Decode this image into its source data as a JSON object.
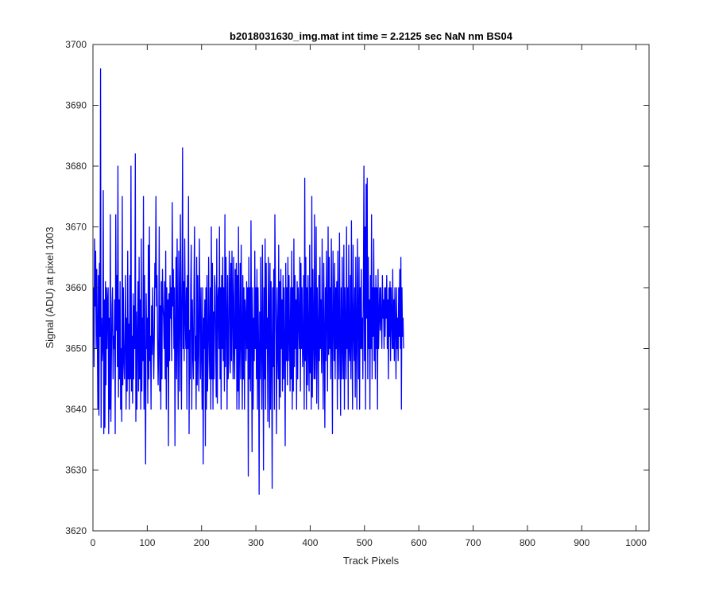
{
  "chart_data": {
    "type": "line",
    "title": "b2018031630_img.mat int time = 2.2125 sec  NaN nm BS04",
    "xlabel": "Track Pixels",
    "ylabel": "Signal (ADU) at pixel 1003",
    "xlim": [
      0,
      1024
    ],
    "ylim": [
      3620,
      3700
    ],
    "xticks": [
      0,
      100,
      200,
      300,
      400,
      500,
      600,
      700,
      800,
      900,
      1000
    ],
    "yticks": [
      3620,
      3630,
      3640,
      3650,
      3660,
      3670,
      3680,
      3690,
      3700
    ],
    "grid": false,
    "legend": "none",
    "series": [
      {
        "color": "#0000ff",
        "x_start": 1,
        "x_step": 1,
        "values": [
          3660,
          3647,
          3668,
          3657,
          3666,
          3650,
          3663,
          3653,
          3640,
          3662,
          3639,
          3664,
          3652,
          3696,
          3637,
          3655,
          3648,
          3650,
          3676,
          3636,
          3658,
          3637,
          3661,
          3644,
          3660,
          3650,
          3658,
          3660,
          3636,
          3655,
          3640,
          3672,
          3638,
          3648,
          3657,
          3660,
          3645,
          3652,
          3650,
          3658,
          3636,
          3672,
          3653,
          3662,
          3647,
          3680,
          3642,
          3658,
          3645,
          3661,
          3640,
          3650,
          3638,
          3675,
          3644,
          3660,
          3648,
          3645,
          3652,
          3662,
          3640,
          3655,
          3643,
          3666,
          3645,
          3654,
          3640,
          3662,
          3645,
          3680,
          3643,
          3652,
          3641,
          3659,
          3645,
          3657,
          3650,
          3682,
          3638,
          3656,
          3640,
          3652,
          3661,
          3643,
          3665,
          3645,
          3658,
          3640,
          3668,
          3643,
          3655,
          3648,
          3675,
          3640,
          3662,
          3645,
          3631,
          3659,
          3650,
          3655,
          3641,
          3667,
          3645,
          3670,
          3648,
          3652,
          3640,
          3657,
          3649,
          3660,
          3652,
          3645,
          3652,
          3664,
          3660,
          3675,
          3657,
          3662,
          3652,
          3644,
          3650,
          3670,
          3643,
          3657,
          3640,
          3661,
          3645,
          3663,
          3657,
          3655,
          3650,
          3661,
          3645,
          3666,
          3640,
          3660,
          3647,
          3658,
          3634,
          3659,
          3648,
          3662,
          3655,
          3660,
          3648,
          3674,
          3657,
          3663,
          3650,
          3660,
          3634,
          3653,
          3665,
          3645,
          3668,
          3652,
          3640,
          3666,
          3657,
          3643,
          3672,
          3658,
          3640,
          3660,
          3683,
          3650,
          3661,
          3648,
          3668,
          3655,
          3650,
          3660,
          3640,
          3662,
          3650,
          3675,
          3636,
          3653,
          3645,
          3660,
          3667,
          3640,
          3658,
          3650,
          3645,
          3660,
          3670,
          3648,
          3652,
          3640,
          3665,
          3644,
          3662,
          3650,
          3643,
          3668,
          3657,
          3645,
          3660,
          3649,
          3640,
          3660,
          3631,
          3655,
          3650,
          3658,
          3634,
          3660,
          3640,
          3662,
          3643,
          3648,
          3665,
          3652,
          3645,
          3660,
          3640,
          3670,
          3645,
          3664,
          3640,
          3656,
          3645,
          3662,
          3660,
          3650,
          3642,
          3668,
          3641,
          3658,
          3660,
          3650,
          3670,
          3645,
          3660,
          3640,
          3662,
          3650,
          3665,
          3648,
          3660,
          3643,
          3672,
          3647,
          3665,
          3655,
          3640,
          3662,
          3645,
          3648,
          3666,
          3660,
          3646,
          3664,
          3648,
          3666,
          3656,
          3645,
          3665,
          3650,
          3645,
          3663,
          3650,
          3664,
          3640,
          3662,
          3643,
          3670,
          3640,
          3652,
          3664,
          3645,
          3667,
          3652,
          3640,
          3662,
          3645,
          3660,
          3640,
          3658,
          3655,
          3648,
          3661,
          3650,
          3660,
          3629,
          3665,
          3645,
          3660,
          3643,
          3671,
          3652,
          3633,
          3660,
          3640,
          3655,
          3648,
          3666,
          3650,
          3660,
          3645,
          3663,
          3640,
          3660,
          3650,
          3626,
          3656,
          3645,
          3665,
          3650,
          3640,
          3667,
          3653,
          3630,
          3660,
          3645,
          3668,
          3640,
          3664,
          3650,
          3655,
          3638,
          3665,
          3656,
          3637,
          3664,
          3640,
          3661,
          3650,
          3627,
          3660,
          3647,
          3663,
          3640,
          3672,
          3660,
          3652,
          3636,
          3660,
          3650,
          3645,
          3667,
          3640,
          3661,
          3642,
          3663,
          3650,
          3658,
          3643,
          3662,
          3645,
          3660,
          3650,
          3634,
          3664,
          3648,
          3660,
          3644,
          3665,
          3648,
          3662,
          3652,
          3643,
          3660,
          3645,
          3666,
          3640,
          3660,
          3643,
          3668,
          3647,
          3662,
          3650,
          3658,
          3640,
          3661,
          3645,
          3660,
          3655,
          3650,
          3665,
          3643,
          3664,
          3650,
          3660,
          3647,
          3650,
          3662,
          3640,
          3678,
          3648,
          3665,
          3640,
          3660,
          3644,
          3662,
          3651,
          3643,
          3667,
          3646,
          3660,
          3640,
          3675,
          3642,
          3663,
          3652,
          3645,
          3672,
          3645,
          3650,
          3670,
          3641,
          3660,
          3653,
          3640,
          3662,
          3648,
          3665,
          3650,
          3658,
          3646,
          3668,
          3652,
          3640,
          3664,
          3652,
          3637,
          3660,
          3648,
          3666,
          3655,
          3643,
          3670,
          3649,
          3665,
          3650,
          3660,
          3645,
          3668,
          3652,
          3636,
          3666,
          3655,
          3648,
          3664,
          3645,
          3660,
          3650,
          3661,
          3640,
          3666,
          3653,
          3645,
          3669,
          3652,
          3639,
          3660,
          3645,
          3665,
          3650,
          3645,
          3667,
          3640,
          3660,
          3652,
          3645,
          3670,
          3650,
          3660,
          3640,
          3667,
          3650,
          3648,
          3662,
          3645,
          3671,
          3652,
          3640,
          3667,
          3653,
          3648,
          3660,
          3642,
          3665,
          3652,
          3640,
          3668,
          3655,
          3645,
          3665,
          3640,
          3660,
          3650,
          3663,
          3650,
          3655,
          3645,
          3660,
          3680,
          3648,
          3670,
          3640,
          3677,
          3655,
          3678,
          3645,
          3665,
          3650,
          3658,
          3640,
          3662,
          3650,
          3672,
          3645,
          3660,
          3652,
          3668,
          3648,
          3660,
          3645,
          3662,
          3650,
          3660,
          3640,
          3663,
          3650,
          3655,
          3660,
          3653,
          3660,
          3655,
          3650,
          3662,
          3655,
          3658,
          3650,
          3660,
          3652,
          3660,
          3655,
          3662,
          3650,
          3658,
          3645,
          3660,
          3652,
          3661,
          3648,
          3660,
          3655,
          3650,
          3663,
          3650,
          3658,
          3648,
          3660,
          3654,
          3645,
          3660,
          3650,
          3655,
          3648,
          3660,
          3652,
          3663,
          3650,
          3665,
          3640,
          3660,
          3652,
          3655,
          3650
        ]
      }
    ]
  }
}
